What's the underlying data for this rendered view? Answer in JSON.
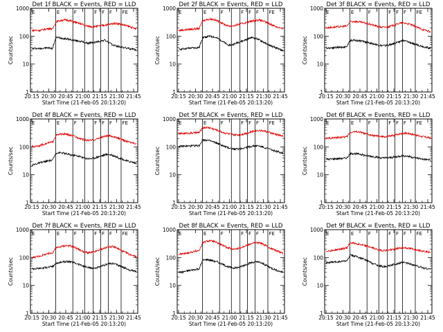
{
  "chart_data": [
    {
      "type": "line",
      "title": "Det  1f  BLACK = Events, RED = LLD",
      "xlabel": "Start Time (21-Feb-05 20:13:20)",
      "ylabel": "Counts/sec",
      "yscale": "log",
      "ylim": [
        1,
        1000
      ],
      "yticks": [
        "1",
        "10",
        "100",
        "1000"
      ],
      "xticks": [
        "20:15",
        "20:30",
        "20:45",
        "21:00",
        "21:15",
        "21:30",
        "21:45"
      ],
      "segment_markers": [
        "E",
        "F",
        "F",
        "F",
        "F",
        "FE"
      ],
      "series": [
        {
          "name": "Events",
          "color": "#000000",
          "values": [
            35,
            37,
            36,
            37,
            38,
            38,
            36,
            90,
            88,
            84,
            80,
            76,
            72,
            68,
            66,
            60,
            56,
            58,
            60,
            64,
            68,
            72,
            60,
            50,
            46,
            42,
            40,
            38,
            36,
            34,
            32
          ]
        },
        {
          "name": "LLD",
          "color": "#e00000",
          "values": [
            160,
            165,
            160,
            170,
            180,
            190,
            180,
            330,
            360,
            380,
            380,
            360,
            330,
            300,
            280,
            250,
            230,
            220,
            220,
            230,
            240,
            250,
            260,
            280,
            290,
            280,
            260,
            240,
            220,
            200,
            180
          ]
        }
      ]
    },
    {
      "type": "line",
      "title": "Det  2f  BLACK = Events, RED = LLD",
      "xlabel": "Start Time (21-Feb-05 20:13:20)",
      "ylabel": "Counts/sec",
      "yscale": "log",
      "ylim": [
        1,
        1000
      ],
      "yticks": [
        "1",
        "10",
        "100",
        "1000"
      ],
      "xticks": [
        "20:15",
        "20:30",
        "20:45",
        "21:00",
        "21:15",
        "21:30",
        "21:45"
      ],
      "segment_markers": [
        "E",
        "F",
        "F",
        "F",
        "F",
        "FE"
      ],
      "series": [
        {
          "name": "Events",
          "color": "#000000",
          "values": [
            34,
            35,
            36,
            37,
            38,
            38,
            40,
            90,
            95,
            100,
            95,
            85,
            75,
            60,
            50,
            48,
            52,
            60,
            65,
            72,
            80,
            90,
            85,
            75,
            65,
            55,
            48,
            42,
            38,
            34,
            30
          ]
        },
        {
          "name": "LLD",
          "color": "#e00000",
          "values": [
            160,
            165,
            170,
            175,
            180,
            185,
            190,
            360,
            390,
            410,
            400,
            360,
            320,
            270,
            240,
            230,
            240,
            260,
            280,
            300,
            320,
            350,
            370,
            380,
            360,
            320,
            280,
            250,
            220,
            200,
            180
          ]
        }
      ]
    },
    {
      "type": "line",
      "title": "Det  3f  BLACK = Events, RED = LLD",
      "xlabel": "Start Time (21-Feb-05 20:13:20)",
      "ylabel": "Counts/sec",
      "yscale": "log",
      "ylim": [
        1,
        1000
      ],
      "yticks": [
        "1",
        "10",
        "100",
        "1000"
      ],
      "xticks": [
        "20:15",
        "20:30",
        "20:45",
        "21:00",
        "21:15",
        "21:30",
        "21:45"
      ],
      "segment_markers": [
        "E",
        "F",
        "F",
        "F",
        "F",
        "FE"
      ],
      "series": [
        {
          "name": "Events",
          "color": "#000000",
          "values": [
            38,
            38,
            39,
            40,
            40,
            41,
            42,
            70,
            72,
            70,
            68,
            64,
            60,
            56,
            52,
            48,
            46,
            46,
            48,
            52,
            58,
            64,
            70,
            66,
            60,
            54,
            50,
            46,
            42,
            40,
            36
          ]
        },
        {
          "name": "LLD",
          "color": "#e00000",
          "values": [
            200,
            205,
            210,
            215,
            220,
            225,
            230,
            330,
            340,
            330,
            320,
            300,
            280,
            260,
            240,
            220,
            210,
            210,
            220,
            240,
            260,
            290,
            300,
            290,
            270,
            240,
            210,
            190,
            170,
            160,
            140
          ]
        }
      ]
    },
    {
      "type": "line",
      "title": "Det  4f  BLACK = Events, RED = LLD",
      "xlabel": "Start Time (21-Feb-05 20:13:20)",
      "ylabel": "Counts/sec",
      "yscale": "log",
      "ylim": [
        1,
        1000
      ],
      "yticks": [
        "1",
        "10",
        "100",
        "1000"
      ],
      "xticks": [
        "20:15",
        "20:30",
        "20:45",
        "21:00",
        "21:15",
        "21:30",
        "21:45"
      ],
      "segment_markers": [
        "E",
        "F",
        "F",
        "F",
        "F",
        "FE"
      ],
      "series": [
        {
          "name": "Events",
          "color": "#000000",
          "values": [
            22,
            24,
            26,
            28,
            30,
            32,
            34,
            60,
            62,
            60,
            56,
            52,
            50,
            48,
            44,
            40,
            38,
            38,
            40,
            44,
            48,
            52,
            54,
            50,
            46,
            40,
            36,
            32,
            30,
            28,
            26
          ]
        },
        {
          "name": "LLD",
          "color": "#e00000",
          "values": [
            100,
            105,
            110,
            120,
            130,
            140,
            150,
            260,
            280,
            290,
            280,
            260,
            240,
            220,
            200,
            180,
            170,
            170,
            180,
            200,
            220,
            240,
            250,
            240,
            220,
            200,
            180,
            160,
            150,
            140,
            130
          ]
        }
      ]
    },
    {
      "type": "line",
      "title": "Det  5f  BLACK = Events, RED = LLD",
      "xlabel": "Start Time (21-Feb-05 20:13:20)",
      "ylabel": "Counts/sec",
      "yscale": "log",
      "ylim": [
        1,
        1000
      ],
      "yticks": [
        "1",
        "10",
        "100",
        "1000"
      ],
      "xticks": [
        "20:15",
        "20:30",
        "20:45",
        "21:00",
        "21:15",
        "21:30",
        "21:45"
      ],
      "segment_markers": [
        "E",
        "F",
        "F",
        "F",
        "F",
        "FE"
      ],
      "series": [
        {
          "name": "Events",
          "color": "#000000",
          "values": [
            105,
            105,
            106,
            107,
            108,
            110,
            112,
            180,
            175,
            165,
            150,
            135,
            120,
            105,
            95,
            88,
            84,
            84,
            88,
            92,
            98,
            104,
            110,
            108,
            100,
            92,
            84,
            76,
            70,
            64,
            60
          ]
        },
        {
          "name": "LLD",
          "color": "#e00000",
          "values": [
            300,
            300,
            305,
            310,
            315,
            320,
            330,
            480,
            500,
            480,
            440,
            400,
            360,
            320,
            300,
            280,
            270,
            270,
            280,
            300,
            320,
            350,
            380,
            390,
            380,
            360,
            330,
            300,
            280,
            260,
            240
          ]
        }
      ]
    },
    {
      "type": "line",
      "title": "Det  6f  BLACK = Events, RED = LLD",
      "xlabel": "Start Time (21-Feb-05 20:13:20)",
      "ylabel": "Counts/sec",
      "yscale": "log",
      "ylim": [
        1,
        1000
      ],
      "yticks": [
        "1",
        "10",
        "100",
        "1000"
      ],
      "xticks": [
        "20:15",
        "20:30",
        "20:45",
        "21:00",
        "21:15",
        "21:30",
        "21:45"
      ],
      "segment_markers": [
        "E",
        "F",
        "F",
        "F",
        "F",
        "FE"
      ],
      "series": [
        {
          "name": "Events",
          "color": "#000000",
          "values": [
            36,
            36,
            37,
            38,
            38,
            39,
            40,
            56,
            58,
            56,
            54,
            50,
            48,
            46,
            44,
            42,
            40,
            40,
            41,
            42,
            44,
            46,
            48,
            47,
            45,
            42,
            40,
            38,
            36,
            35,
            34
          ]
        },
        {
          "name": "LLD",
          "color": "#e00000",
          "values": [
            200,
            205,
            210,
            215,
            220,
            225,
            230,
            330,
            350,
            350,
            330,
            300,
            280,
            260,
            250,
            240,
            230,
            230,
            240,
            250,
            270,
            290,
            310,
            310,
            300,
            280,
            260,
            240,
            230,
            220,
            210
          ]
        }
      ]
    },
    {
      "type": "line",
      "title": "Det  7f  BLACK = Events, RED = LLD",
      "xlabel": "Start Time (21-Feb-05 20:13:20)",
      "ylabel": "Counts/sec",
      "yscale": "log",
      "ylim": [
        1,
        1000
      ],
      "yticks": [
        "1",
        "10",
        "100",
        "1000"
      ],
      "xticks": [
        "20:15",
        "20:30",
        "20:45",
        "21:00",
        "21:15",
        "21:30",
        "21:45"
      ],
      "segment_markers": [
        "E",
        "F",
        "F",
        "F",
        "F",
        "FE"
      ],
      "series": [
        {
          "name": "Events",
          "color": "#000000",
          "values": [
            40,
            40,
            41,
            42,
            44,
            46,
            48,
            62,
            66,
            70,
            72,
            70,
            66,
            60,
            54,
            48,
            44,
            42,
            42,
            44,
            48,
            54,
            60,
            62,
            58,
            52,
            46,
            40,
            36,
            34,
            32
          ]
        },
        {
          "name": "LLD",
          "color": "#e00000",
          "values": [
            100,
            105,
            110,
            120,
            130,
            140,
            150,
            220,
            240,
            260,
            270,
            260,
            240,
            210,
            180,
            160,
            150,
            150,
            160,
            180,
            200,
            220,
            240,
            250,
            230,
            200,
            170,
            150,
            130,
            120,
            110
          ]
        }
      ]
    },
    {
      "type": "line",
      "title": "Det  8f  BLACK = Events, RED = LLD",
      "xlabel": "Start Time (21-Feb-05 20:13:20)",
      "ylabel": "Counts/sec",
      "yscale": "log",
      "ylim": [
        1,
        1000
      ],
      "yticks": [
        "1",
        "10",
        "100",
        "1000"
      ],
      "xticks": [
        "20:15",
        "20:30",
        "20:45",
        "21:00",
        "21:15",
        "21:30",
        "21:45"
      ],
      "segment_markers": [
        "E",
        "F",
        "F",
        "F",
        "F",
        "FE"
      ],
      "series": [
        {
          "name": "Events",
          "color": "#000000",
          "values": [
            30,
            30,
            32,
            34,
            36,
            38,
            40,
            80,
            85,
            82,
            76,
            70,
            62,
            54,
            48,
            44,
            42,
            44,
            48,
            54,
            60,
            66,
            70,
            68,
            62,
            54,
            46,
            40,
            36,
            32,
            30
          ]
        },
        {
          "name": "LLD",
          "color": "#e00000",
          "values": [
            130,
            135,
            140,
            150,
            160,
            170,
            180,
            340,
            380,
            400,
            380,
            340,
            300,
            260,
            230,
            210,
            200,
            210,
            230,
            260,
            290,
            320,
            340,
            340,
            310,
            270,
            230,
            200,
            180,
            160,
            140
          ]
        }
      ]
    },
    {
      "type": "line",
      "title": "Det  9f  BLACK = Events, RED = LLD",
      "xlabel": "Start Time (21-Feb-05 20:13:20)",
      "ylabel": "Counts/sec",
      "yscale": "log",
      "ylim": [
        1,
        1000
      ],
      "yticks": [
        "1",
        "10",
        "100",
        "1000"
      ],
      "xticks": [
        "20:15",
        "20:30",
        "20:45",
        "21:00",
        "21:15",
        "21:30",
        "21:45"
      ],
      "segment_markers": [
        "E",
        "F",
        "F",
        "F",
        "F",
        "FE"
      ],
      "series": [
        {
          "name": "Events",
          "color": "#000000",
          "values": [
            66,
            66,
            68,
            70,
            72,
            74,
            76,
            120,
            115,
            105,
            95,
            85,
            75,
            65,
            58,
            52,
            48,
            48,
            50,
            54,
            58,
            62,
            66,
            64,
            60,
            55,
            50,
            46,
            42,
            40,
            38
          ]
        },
        {
          "name": "LLD",
          "color": "#e00000",
          "values": [
            170,
            175,
            180,
            190,
            200,
            210,
            220,
            340,
            330,
            310,
            290,
            270,
            250,
            230,
            210,
            190,
            180,
            180,
            185,
            195,
            205,
            215,
            225,
            220,
            210,
            200,
            190,
            180,
            170,
            165,
            160
          ]
        }
      ]
    }
  ]
}
